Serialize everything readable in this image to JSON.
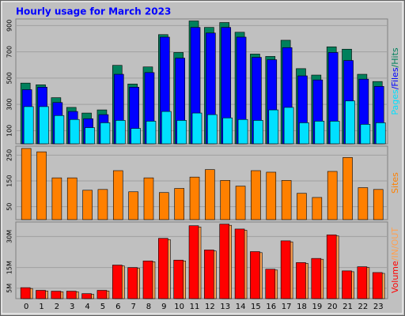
{
  "title": "Hourly usage for March 2023",
  "label_separator": "/",
  "chart_data": [
    {
      "type": "bar",
      "ylim": [
        0,
        950
      ],
      "yticks": [
        100,
        300,
        500,
        700,
        900
      ],
      "grid": true,
      "series": [
        {
          "name": "Pages",
          "color": "#00e0ff",
          "values": [
            283,
            283,
            215,
            185,
            123,
            160,
            178,
            117,
            172,
            246,
            178,
            234,
            222,
            197,
            185,
            178,
            258,
            277,
            160,
            172,
            172,
            326,
            148,
            160
          ]
        },
        {
          "name": "Files",
          "color": "#0000ff",
          "values": [
            412,
            431,
            314,
            246,
            191,
            222,
            529,
            431,
            542,
            812,
            652,
            886,
            843,
            886,
            812,
            658,
            640,
            732,
            517,
            486,
            695,
            634,
            492,
            437
          ]
        },
        {
          "name": "Hits",
          "color": "#00805c",
          "values": [
            462,
            449,
            351,
            277,
            234,
            258,
            597,
            455,
            585,
            831,
            695,
            935,
            886,
            923,
            849,
            683,
            665,
            788,
            572,
            523,
            738,
            720,
            529,
            474
          ]
        }
      ]
    },
    {
      "type": "bar",
      "ylim": [
        0,
        285
      ],
      "yticks": [
        50,
        150,
        250
      ],
      "grid": true,
      "series": [
        {
          "name": "Sites",
          "color": "#ff8000",
          "values": [
            276,
            263,
            162,
            162,
            114,
            117,
            190,
            108,
            162,
            105,
            121,
            165,
            194,
            152,
            130,
            190,
            184,
            152,
            102,
            86,
            187,
            241,
            124,
            117
          ]
        }
      ]
    },
    {
      "type": "bar",
      "ylim": [
        0,
        37
      ],
      "yticks": [
        {
          "value": 5,
          "label": "5M"
        },
        {
          "value": 15,
          "label": "15M"
        },
        {
          "value": 30,
          "label": "30M"
        }
      ],
      "grid": true,
      "categories": [
        "0",
        "1",
        "2",
        "3",
        "4",
        "5",
        "6",
        "7",
        "8",
        "9",
        "10",
        "11",
        "12",
        "13",
        "14",
        "15",
        "16",
        "17",
        "18",
        "19",
        "20",
        "21",
        "22",
        "23"
      ],
      "series": [
        {
          "name": "Volume",
          "color": "#ff0000",
          "values": [
            5.3,
            4.0,
            3.6,
            3.6,
            2.4,
            4.0,
            16.2,
            15.0,
            18.2,
            29.1,
            18.6,
            35.2,
            23.5,
            36.0,
            33.6,
            22.7,
            14.2,
            27.9,
            17.4,
            19.4,
            30.8,
            13.4,
            15.4,
            12.6
          ]
        },
        {
          "name": "IN/OUT",
          "color": "#ffa050",
          "values": [
            4.9,
            3.7,
            3.3,
            3.3,
            2.1,
            3.7,
            15.8,
            14.6,
            17.8,
            28.5,
            18.2,
            34.6,
            23.0,
            35.4,
            33.0,
            22.2,
            13.8,
            27.4,
            17.0,
            19.0,
            30.3,
            13.0,
            15.0,
            12.2
          ]
        }
      ]
    }
  ]
}
